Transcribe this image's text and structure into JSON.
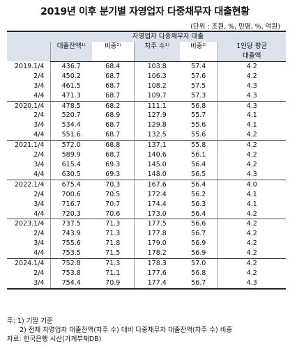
{
  "title": "2019년 이후 분기별 자영업자 다중채무자 대출현황",
  "unit": "(단위 : 조원, %, 만명, %, 억원)",
  "header": {
    "group": "자영업자 다중채무자 대출",
    "loan_balance": "대출잔액¹⁾",
    "share": "비중²⁾",
    "borrowers": "차주 수¹⁾",
    "share2": "비중²⁾",
    "avg_line1": "1인당 평균",
    "avg_line2": "대출액"
  },
  "rows": [
    {
      "period": "2019.1/4",
      "bal": "436.7",
      "sh1": "68.4",
      "borr": "103.8",
      "sh2": "57.4",
      "avg": "4.2"
    },
    {
      "period": "2/4",
      "bal": "450.2",
      "sh1": "68.7",
      "borr": "106.3",
      "sh2": "57.6",
      "avg": "4.2"
    },
    {
      "period": "3/4",
      "bal": "461.5",
      "sh1": "68.7",
      "borr": "108.2",
      "sh2": "57.5",
      "avg": "4.3"
    },
    {
      "period": "4/4",
      "bal": "471.3",
      "sh1": "68.7",
      "borr": "109.7",
      "sh2": "57.3",
      "avg": "4.3"
    },
    {
      "period": "2020.1/4",
      "bal": "478.5",
      "sh1": "68.2",
      "borr": "111.1",
      "sh2": "56.8",
      "avg": "4.3"
    },
    {
      "period": "2/4",
      "bal": "520.7",
      "sh1": "68.9",
      "borr": "127.9",
      "sh2": "55.7",
      "avg": "4.1"
    },
    {
      "period": "3/4",
      "bal": "534.4",
      "sh1": "68.7",
      "borr": "129.8",
      "sh2": "55.6",
      "avg": "4.1"
    },
    {
      "period": "4/4",
      "bal": "551.6",
      "sh1": "68.7",
      "borr": "132.5",
      "sh2": "55.6",
      "avg": "4.2"
    },
    {
      "period": "2021.1/4",
      "bal": "572.0",
      "sh1": "68.8",
      "borr": "137.1",
      "sh2": "55.8",
      "avg": "4.2"
    },
    {
      "period": "2/4",
      "bal": "589.9",
      "sh1": "68.7",
      "borr": "140.6",
      "sh2": "56.1",
      "avg": "4.2"
    },
    {
      "period": "3/4",
      "bal": "615.4",
      "sh1": "69.3",
      "borr": "145.0",
      "sh2": "56.4",
      "avg": "4.2"
    },
    {
      "period": "4/4",
      "bal": "630.5",
      "sh1": "69.3",
      "borr": "148.0",
      "sh2": "56.5",
      "avg": "4.3"
    },
    {
      "period": "2022.1/4",
      "bal": "675.4",
      "sh1": "70.3",
      "borr": "167.6",
      "sh2": "56.4",
      "avg": "4.0"
    },
    {
      "period": "2/4",
      "bal": "700.6",
      "sh1": "70.5",
      "borr": "172.4",
      "sh2": "56.2",
      "avg": "4.1"
    },
    {
      "period": "3/4",
      "bal": "716.7",
      "sh1": "70.7",
      "borr": "174.4",
      "sh2": "56.3",
      "avg": "4.1"
    },
    {
      "period": "4/4",
      "bal": "720.3",
      "sh1": "70.6",
      "borr": "173.0",
      "sh2": "56.4",
      "avg": "4.2"
    },
    {
      "period": "2023.1/4",
      "bal": "737.5",
      "sh1": "71.3",
      "borr": "177.5",
      "sh2": "56.6",
      "avg": "4.2"
    },
    {
      "period": "2/4",
      "bal": "743.9",
      "sh1": "71.3",
      "borr": "177.8",
      "sh2": "56.7",
      "avg": "4.2"
    },
    {
      "period": "3/4",
      "bal": "755.6",
      "sh1": "71.8",
      "borr": "179.0",
      "sh2": "56.9",
      "avg": "4.2"
    },
    {
      "period": "4/4",
      "bal": "753.5",
      "sh1": "71.5",
      "borr": "178.2",
      "sh2": "56.9",
      "avg": "4.2"
    },
    {
      "period": "2024.1/4",
      "bal": "752.8",
      "sh1": "71.3",
      "borr": "178.3",
      "sh2": "57.0",
      "avg": "4.2"
    },
    {
      "period": "2/4",
      "bal": "753.8",
      "sh1": "71.1",
      "borr": "177.6",
      "sh2": "56.8",
      "avg": "4.2"
    },
    {
      "period": "3/4",
      "bal": "754.4",
      "sh1": "70.9",
      "borr": "177.4",
      "sh2": "56.7",
      "avg": "4.3"
    }
  ],
  "notes": {
    "note1": "주: 1) 기말 기준",
    "note2": "2) 전체 자영업자 대출잔액(차주 수) 대비 다중채무자 대출잔액(차주 수) 비중",
    "source": "자료: 한국은행 시산(가계부채DB)"
  }
}
